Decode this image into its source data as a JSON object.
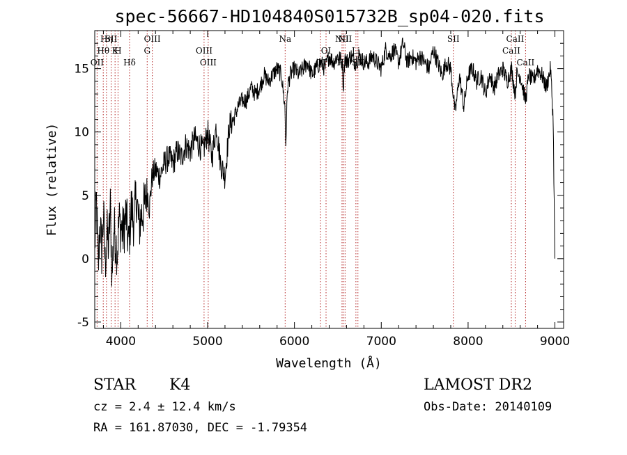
{
  "chart_data": {
    "type": "line",
    "title": "spec-56667-HD104840S015732B_sp04-020.fits",
    "xlabel": "Wavelength (Å)",
    "ylabel": "Flux (relative)",
    "xlim": [
      3700,
      9100
    ],
    "ylim": [
      -5.5,
      18
    ],
    "x_ticks": [
      4000,
      5000,
      6000,
      7000,
      8000,
      9000
    ],
    "y_ticks": [
      -5,
      0,
      5,
      10,
      15
    ],
    "grid": false,
    "series": [
      {
        "x": [
          3700,
          3720,
          3740,
          3760,
          3780,
          3800,
          3820,
          3840,
          3860,
          3880,
          3900,
          3920,
          3940,
          3960,
          3980,
          4000,
          4030,
          4060,
          4090,
          4120,
          4150,
          4180,
          4210,
          4240,
          4270,
          4300,
          4330,
          4360,
          4400,
          4450,
          4500,
          4550,
          4600,
          4650,
          4700,
          4750,
          4800,
          4850,
          4900,
          4950,
          5000,
          5050,
          5100,
          5150,
          5200,
          5250,
          5300,
          5350,
          5400,
          5450,
          5500,
          5550,
          5600,
          5650,
          5700,
          5750,
          5800,
          5850,
          5890,
          5900,
          5920,
          5950,
          6000,
          6050,
          6100,
          6150,
          6200,
          6250,
          6300,
          6350,
          6400,
          6450,
          6500,
          6550,
          6563,
          6580,
          6600,
          6650,
          6700,
          6750,
          6800,
          6850,
          6900,
          6950,
          7000,
          7050,
          7100,
          7150,
          7200,
          7250,
          7300,
          7350,
          7400,
          7450,
          7500,
          7550,
          7600,
          7650,
          7700,
          7750,
          7800,
          7850,
          7860,
          7900,
          7950,
          8000,
          8050,
          8100,
          8150,
          8200,
          8250,
          8300,
          8350,
          8400,
          8450,
          8500,
          8542,
          8560,
          8600,
          8662,
          8700,
          8750,
          8800,
          8850,
          8900,
          8950,
          8980,
          9000
        ],
        "y": [
          1.0,
          4.5,
          -1.0,
          3.0,
          0.5,
          3.5,
          -0.5,
          2.0,
          1.0,
          4.0,
          -1.5,
          2.5,
          1.5,
          0.5,
          3.0,
          2.5,
          2.0,
          3.5,
          1.0,
          4.0,
          3.0,
          5.0,
          2.5,
          3.5,
          4.0,
          5.5,
          4.0,
          6.5,
          7.0,
          6.5,
          7.5,
          8.0,
          7.5,
          8.5,
          8.0,
          9.0,
          8.5,
          9.5,
          9.0,
          8.5,
          10.0,
          8.0,
          10.5,
          7.5,
          6.5,
          10.5,
          11.0,
          12.0,
          12.5,
          12.5,
          13.5,
          13.0,
          13.5,
          14.5,
          14.0,
          14.5,
          15.0,
          14.5,
          12.0,
          9.0,
          13.5,
          14.5,
          15.0,
          14.5,
          15.0,
          15.5,
          14.5,
          15.0,
          15.5,
          15.0,
          16.0,
          15.5,
          16.0,
          15.5,
          13.5,
          16.0,
          15.5,
          16.0,
          15.5,
          16.0,
          15.5,
          15.5,
          16.0,
          15.5,
          15.0,
          16.5,
          16.0,
          16.5,
          15.5,
          17.0,
          15.5,
          16.0,
          15.5,
          16.0,
          15.5,
          15.0,
          16.5,
          15.5,
          14.5,
          15.5,
          15.0,
          11.5,
          12.0,
          14.5,
          12.0,
          14.5,
          15.0,
          14.0,
          14.5,
          13.0,
          14.5,
          13.5,
          14.5,
          15.0,
          14.0,
          15.0,
          13.0,
          14.5,
          14.5,
          12.5,
          14.5,
          14.0,
          15.0,
          14.5,
          13.5,
          15.0,
          11.0,
          0.0
        ]
      }
    ],
    "lines": [
      {
        "label": "OII",
        "x": 3727,
        "row": 2
      },
      {
        "label": "Hθ",
        "x": 3798,
        "row": 1
      },
      {
        "label": "Hη",
        "x": 3835,
        "row": 0
      },
      {
        "label": "SII",
        "x": 3889,
        "row": 0
      },
      {
        "label": "K",
        "x": 3934,
        "row": 1
      },
      {
        "label": "H",
        "x": 3968,
        "row": 1
      },
      {
        "label": "Hδ",
        "x": 4101,
        "row": 2
      },
      {
        "label": "G",
        "x": 4304,
        "row": 1
      },
      {
        "label": "OIII",
        "x": 4363,
        "row": 0
      },
      {
        "label": "OIII",
        "x": 4959,
        "row": 1
      },
      {
        "label": "OIII",
        "x": 5007,
        "row": 2
      },
      {
        "label": "Na",
        "x": 5893,
        "row": 0
      },
      {
        "label": "OI",
        "x": 6300,
        "row": 2
      },
      {
        "label": "OI",
        "x": 6364,
        "row": 1
      },
      {
        "label": "NII",
        "x": 6548,
        "row": 0
      },
      {
        "label": "Hα",
        "x": 6563,
        "row": 2
      },
      {
        "label": "NII",
        "x": 6583,
        "row": 0
      },
      {
        "label": "Li",
        "x": 6708,
        "row": 1
      },
      {
        "label": "SII",
        "x": 6731,
        "row": 2
      },
      {
        "label": "SII",
        "x": 7830,
        "row": 0
      },
      {
        "label": "CaII",
        "x": 8498,
        "row": 1
      },
      {
        "label": "CaII",
        "x": 8542,
        "row": 0
      },
      {
        "label": "CaII",
        "x": 8662,
        "row": 2
      }
    ]
  },
  "info": {
    "object_type": "STAR",
    "subclass": "K4",
    "survey": "LAMOST DR2",
    "cz_line": "cz = 2.4 ± 12.4 km/s",
    "obs_date_line": "Obs-Date: 20140109",
    "radec_line": "RA = 161.87030, DEC =  -1.79354"
  },
  "colors": {
    "spectrum": "#000000",
    "line_markers": "#b22222",
    "frame": "#000000"
  }
}
